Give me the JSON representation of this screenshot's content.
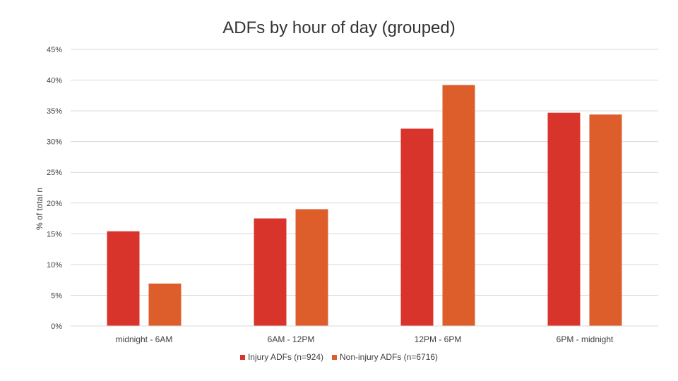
{
  "chart_data": {
    "type": "bar",
    "title": "ADFs by hour of day (grouped)",
    "xlabel": "",
    "ylabel": "% of total n",
    "ylim": [
      0,
      45
    ],
    "yticks": [
      "0%",
      "5%",
      "10%",
      "15%",
      "20%",
      "25%",
      "30%",
      "35%",
      "40%",
      "45%"
    ],
    "grid": true,
    "legend_position": "bottom",
    "categories": [
      "midnight - 6AM",
      "6AM - 12PM",
      "12PM - 6PM",
      "6PM - midnight"
    ],
    "series": [
      {
        "name": "Injury ADFs (n=924)",
        "color": "#d9342b",
        "values": [
          15.4,
          17.5,
          32.1,
          34.7
        ]
      },
      {
        "name": "Non-injury ADFs (n=6716)",
        "color": "#dd5e2a",
        "values": [
          6.9,
          19.0,
          39.2,
          34.4
        ]
      }
    ]
  }
}
